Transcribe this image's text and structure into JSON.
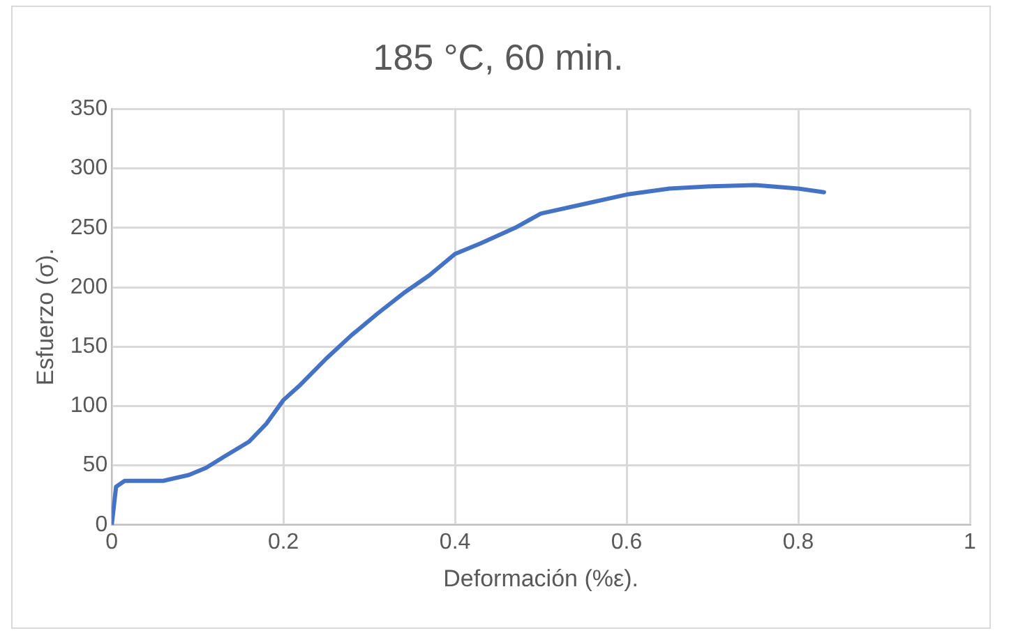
{
  "chart_data": {
    "type": "line",
    "title": "185 °C, 60 min.",
    "xlabel": "Deformación (%ε).",
    "ylabel": "Esfuerzo (σ).",
    "x": [
      0,
      0.005,
      0.015,
      0.03,
      0.06,
      0.09,
      0.11,
      0.13,
      0.16,
      0.18,
      0.2,
      0.22,
      0.25,
      0.28,
      0.31,
      0.34,
      0.37,
      0.4,
      0.43,
      0.47,
      0.5,
      0.55,
      0.6,
      0.65,
      0.7,
      0.75,
      0.8,
      0.83
    ],
    "series": [
      {
        "color": "#4472c4",
        "values": [
          0,
          32,
          37,
          37,
          37,
          42,
          48,
          57,
          70,
          85,
          105,
          118,
          140,
          160,
          178,
          195,
          210,
          228,
          237,
          250,
          262,
          270,
          278,
          283,
          285,
          286,
          283,
          280
        ]
      }
    ],
    "xlim": [
      0,
      1
    ],
    "xticks": [
      0,
      0.2,
      0.4,
      0.6,
      0.8,
      1
    ],
    "ylim": [
      0,
      350
    ],
    "yticks": [
      0,
      50,
      100,
      150,
      200,
      250,
      300,
      350
    ],
    "grid": true,
    "legend": false,
    "marker": "none",
    "line_style": "solid"
  }
}
